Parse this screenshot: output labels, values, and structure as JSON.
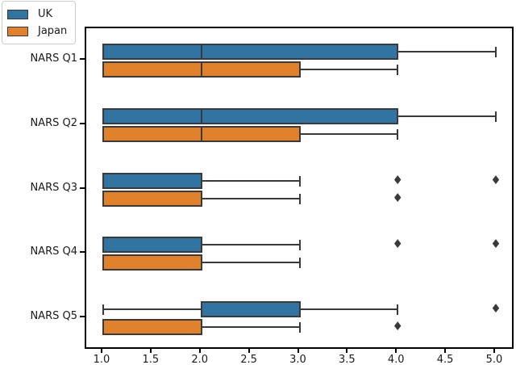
{
  "chart_data": {
    "type": "boxplot",
    "orientation": "horizontal",
    "title": "",
    "xlabel": "",
    "ylabel": "",
    "categories": [
      "NARS Q1",
      "NARS Q2",
      "NARS Q3",
      "NARS Q4",
      "NARS Q5"
    ],
    "xlim": [
      0.8275,
      5.197
    ],
    "xticks": [
      {
        "value": 1.0,
        "label": "1.0"
      },
      {
        "value": 1.5,
        "label": "1.5"
      },
      {
        "value": 2.0,
        "label": "2.0"
      },
      {
        "value": 2.5,
        "label": "2.5"
      },
      {
        "value": 3.0,
        "label": "3.0"
      },
      {
        "value": 3.5,
        "label": "3.5"
      },
      {
        "value": 4.0,
        "label": "4.0"
      },
      {
        "value": 4.5,
        "label": "4.5"
      },
      {
        "value": 5.0,
        "label": "5.0"
      }
    ],
    "grid": false,
    "legend": {
      "position": "upper-left-outside-corner",
      "entries": [
        "UK",
        "Japan"
      ]
    },
    "series": [
      {
        "name": "UK",
        "color": "#3274a1",
        "boxes": [
          {
            "category": "NARS Q1",
            "whislo": 1.0,
            "q1": 1.0,
            "med": 2.0,
            "q3": 4.0,
            "whishi": 5.0,
            "outliers": []
          },
          {
            "category": "NARS Q2",
            "whislo": 1.0,
            "q1": 1.0,
            "med": 2.0,
            "q3": 4.0,
            "whishi": 5.0,
            "outliers": []
          },
          {
            "category": "NARS Q3",
            "whislo": 1.0,
            "q1": 1.0,
            "med": 2.0,
            "q3": 2.0,
            "whishi": 3.0,
            "outliers": [
              4.0,
              5.0
            ]
          },
          {
            "category": "NARS Q4",
            "whislo": 1.0,
            "q1": 1.0,
            "med": 2.0,
            "q3": 2.0,
            "whishi": 3.0,
            "outliers": [
              4.0,
              5.0
            ]
          },
          {
            "category": "NARS Q5",
            "whislo": 1.0,
            "q1": 2.0,
            "med": 2.0,
            "q3": 3.0,
            "whishi": 4.0,
            "outliers": [
              5.0
            ]
          }
        ]
      },
      {
        "name": "Japan",
        "color": "#e1812c",
        "boxes": [
          {
            "category": "NARS Q1",
            "whislo": 1.0,
            "q1": 1.0,
            "med": 2.0,
            "q3": 3.0,
            "whishi": 4.0,
            "outliers": []
          },
          {
            "category": "NARS Q2",
            "whislo": 1.0,
            "q1": 1.0,
            "med": 2.0,
            "q3": 3.0,
            "whishi": 4.0,
            "outliers": []
          },
          {
            "category": "NARS Q3",
            "whislo": 1.0,
            "q1": 1.0,
            "med": 2.0,
            "q3": 2.0,
            "whishi": 3.0,
            "outliers": [
              4.0
            ]
          },
          {
            "category": "NARS Q4",
            "whislo": 1.0,
            "q1": 1.0,
            "med": 2.0,
            "q3": 2.0,
            "whishi": 3.0,
            "outliers": []
          },
          {
            "category": "NARS Q5",
            "whislo": 1.0,
            "q1": 1.0,
            "med": 2.0,
            "q3": 2.0,
            "whishi": 3.0,
            "outliers": [
              4.0
            ]
          }
        ]
      }
    ],
    "style": {
      "edge_color": "#3a3a3a",
      "spine_color": "#000000",
      "text_color": "#1a1a1a",
      "outlier_marker": "diamond"
    }
  }
}
